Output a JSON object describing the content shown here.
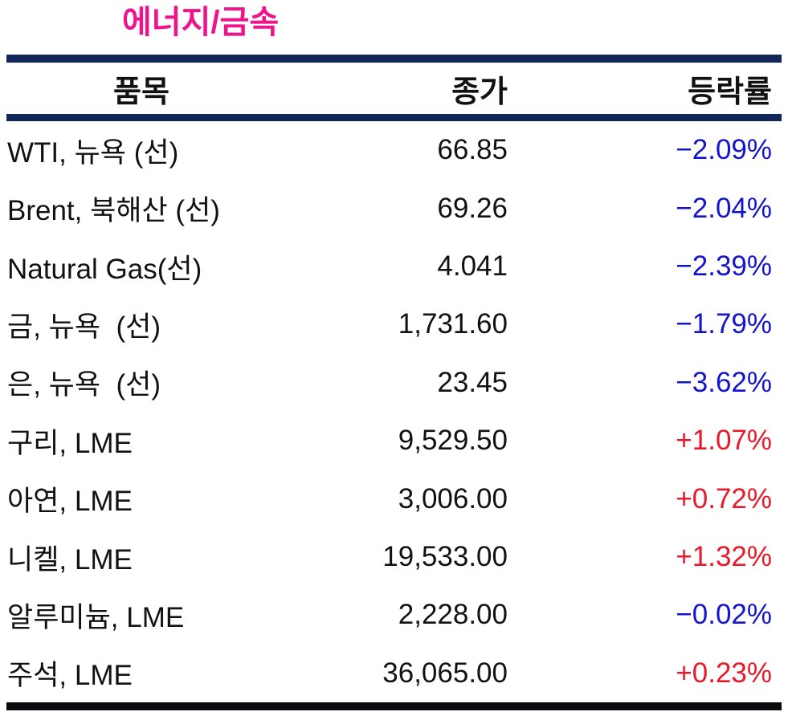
{
  "table": {
    "title": "에너지/금속",
    "headers": {
      "item": "품목",
      "close": "종가",
      "change": "등락률"
    },
    "rows": [
      {
        "item": "WTI, 뉴욕 (선)",
        "close": "66.85",
        "change": "−2.09%",
        "direction": "down"
      },
      {
        "item": "Brent, 북해산 (선)",
        "close": "69.26",
        "change": "−2.04%",
        "direction": "down"
      },
      {
        "item": "Natural Gas(선)",
        "close": "4.041",
        "change": "−2.39%",
        "direction": "down"
      },
      {
        "item": "금, 뉴욕  (선)",
        "close": "1,731.60",
        "change": "−1.79%",
        "direction": "down"
      },
      {
        "item": "은, 뉴욕  (선)",
        "close": "23.45",
        "change": "−3.62%",
        "direction": "down"
      },
      {
        "item": "구리, LME",
        "close": "9,529.50",
        "change": "+1.07%",
        "direction": "up"
      },
      {
        "item": "아연, LME",
        "close": "3,006.00",
        "change": "+0.72%",
        "direction": "up"
      },
      {
        "item": "니켈, LME",
        "close": "19,533.00",
        "change": "+1.32%",
        "direction": "up"
      },
      {
        "item": "알루미늄, LME",
        "close": "2,228.00",
        "change": "−0.02%",
        "direction": "down"
      },
      {
        "item": "주석, LME",
        "close": "36,065.00",
        "change": "+0.23%",
        "direction": "up"
      }
    ]
  },
  "colors": {
    "title": "#F0148C",
    "rule": "#12265A",
    "bottom_rule": "#0A0A0C",
    "text": "#121212",
    "negative": "#1414CC",
    "positive": "#E8192A"
  }
}
